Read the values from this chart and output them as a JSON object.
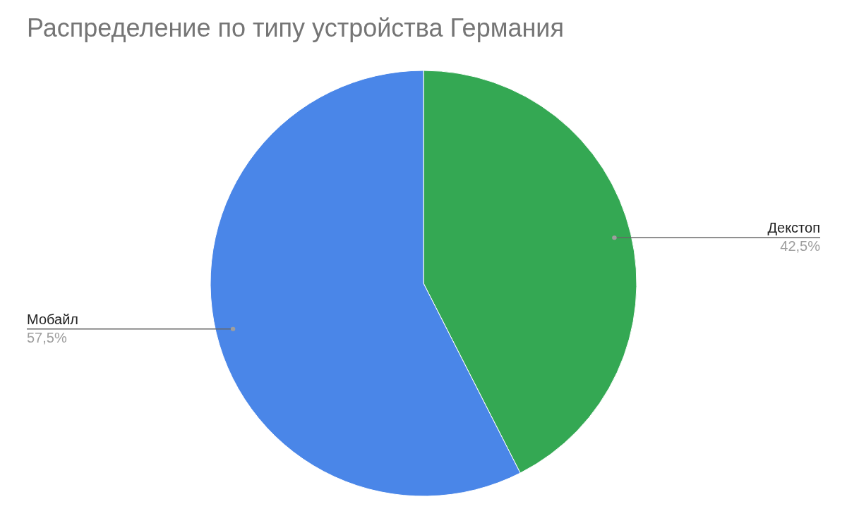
{
  "chart_data": {
    "type": "pie",
    "title": "Распределение по типу устройства Германия",
    "categories": [
      "Декстоп",
      "Мобайл"
    ],
    "values": [
      42.5,
      57.5
    ],
    "colors": [
      "#34a853",
      "#4a86e8"
    ],
    "value_labels": [
      "42,5%",
      "57,5%"
    ],
    "legend": false
  }
}
